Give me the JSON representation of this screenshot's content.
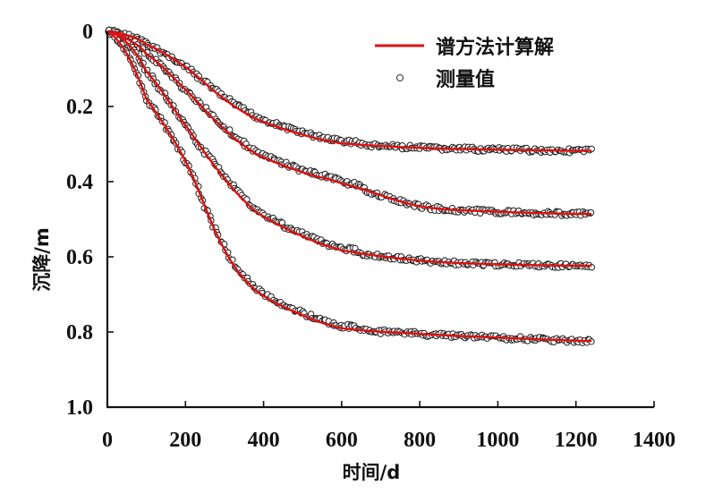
{
  "chart_data": {
    "type": "line",
    "title": "",
    "xlabel": "时间/d",
    "ylabel": "沉降/m",
    "xlim": [
      0,
      1400
    ],
    "ylim": [
      0,
      1.0
    ],
    "y_inverted": true,
    "grid": false,
    "x_ticks": [
      0,
      200,
      400,
      600,
      800,
      1000,
      1200,
      1400
    ],
    "x_tick_labels": [
      "0",
      "200",
      "400",
      "600",
      "800",
      "1000",
      "1200",
      "1400"
    ],
    "y_ticks": [
      0,
      0.2,
      0.4,
      0.6,
      0.8,
      1.0
    ],
    "y_tick_labels": [
      "0",
      "0.2",
      "0.4",
      "0.6",
      "0.8",
      "1.0"
    ],
    "legend": {
      "position": "top-right",
      "entries": [
        {
          "label": "谱方法计算解",
          "kind": "line",
          "color": "#dd1111"
        },
        {
          "label": "测量值",
          "kind": "marker",
          "color": "#222222"
        }
      ]
    },
    "x": [
      0,
      50,
      100,
      200,
      300,
      380,
      500,
      600,
      800,
      1000,
      1240
    ],
    "series": [
      {
        "name": "谱方法计算解-1",
        "kind": "line",
        "values": [
          0,
          0.01,
          0.035,
          0.095,
          0.18,
          0.233,
          0.275,
          0.298,
          0.31,
          0.315,
          0.318
        ]
      },
      {
        "name": "谱方法计算解-2",
        "kind": "line",
        "values": [
          0,
          0.02,
          0.06,
          0.155,
          0.26,
          0.326,
          0.375,
          0.405,
          0.465,
          0.48,
          0.486
        ]
      },
      {
        "name": "谱方法计算解-3",
        "kind": "line",
        "values": [
          0,
          0.03,
          0.107,
          0.25,
          0.39,
          0.48,
          0.545,
          0.583,
          0.61,
          0.62,
          0.624
        ]
      },
      {
        "name": "谱方法计算解-4",
        "kind": "line",
        "values": [
          0,
          0.06,
          0.18,
          0.345,
          0.58,
          0.69,
          0.755,
          0.79,
          0.805,
          0.815,
          0.824
        ]
      },
      {
        "name": "测量值",
        "kind": "scatter",
        "note": "measured points closely follow the four curves from day 0 to ~1240",
        "values": []
      }
    ],
    "colors": {
      "line": "#dd1111",
      "marker": "#222222",
      "axis": "#111111"
    }
  }
}
